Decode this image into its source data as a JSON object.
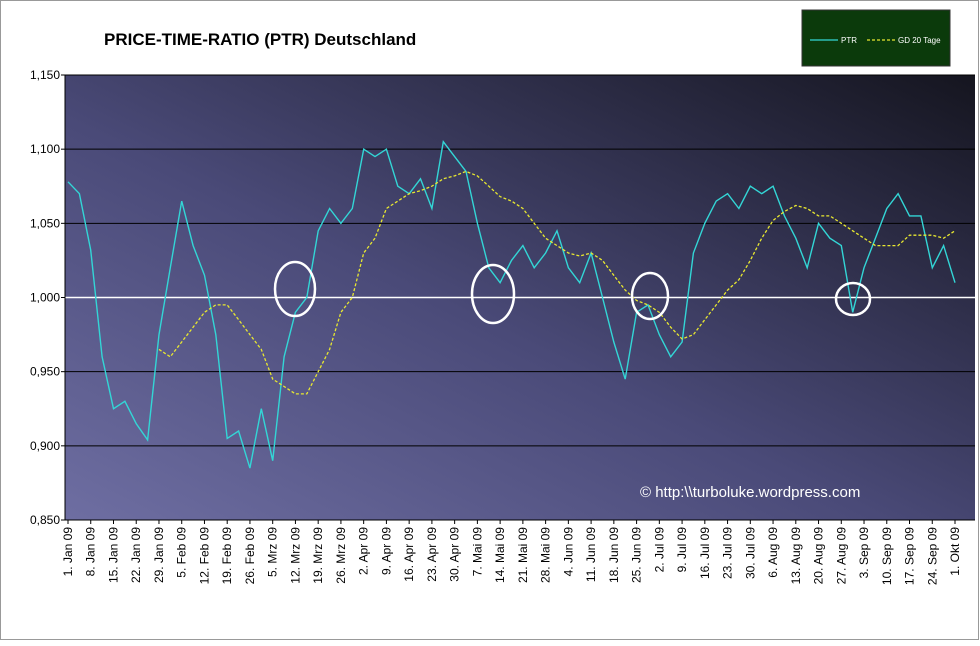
{
  "chart_data": {
    "type": "line",
    "title": "PRICE-TIME-RATIO (PTR) Deutschland",
    "annotation": "© http:\\\\turboluke.wordpress.com",
    "categories": [
      "1. Jan 09",
      null,
      "8. Jan 09",
      null,
      "15. Jan 09",
      null,
      "22. Jan 09",
      null,
      "29. Jan 09",
      null,
      "5. Feb 09",
      null,
      "12. Feb 09",
      null,
      "19. Feb 09",
      null,
      "26. Feb 09",
      null,
      "5. Mrz 09",
      null,
      "12. Mrz 09",
      null,
      "19. Mrz 09",
      null,
      "26. Mrz 09",
      null,
      "2. Apr 09",
      null,
      "9. Apr 09",
      null,
      "16. Apr 09",
      null,
      "23. Apr 09",
      null,
      "30. Apr 09",
      null,
      "7. Mai 09",
      null,
      "14. Mai 09",
      null,
      "21. Mai 09",
      null,
      "28. Mai 09",
      null,
      "4. Jun 09",
      null,
      "11. Jun 09",
      null,
      "18. Jun 09",
      null,
      "25. Jun 09",
      null,
      "2. Jul 09",
      null,
      "9. Jul 09",
      null,
      "16. Jul 09",
      null,
      "23. Jul 09",
      null,
      "30. Jul 09",
      null,
      "6. Aug 09",
      null,
      "13. Aug 09",
      null,
      "20. Aug 09",
      null,
      "27. Aug 09",
      null,
      "3. Sep 09",
      null,
      "10. Sep 09",
      null,
      "17. Sep 09",
      null,
      "24. Sep 09",
      null,
      "1. Okt 09"
    ],
    "series": [
      {
        "name": "PTR",
        "color": "#33d6d6",
        "dash": false,
        "values": [
          1.078,
          1.07,
          1.032,
          0.96,
          0.925,
          0.93,
          0.915,
          0.904,
          0.975,
          1.02,
          1.065,
          1.035,
          1.015,
          0.975,
          0.905,
          0.91,
          0.885,
          0.925,
          0.89,
          0.96,
          0.99,
          1.0,
          1.045,
          1.06,
          1.05,
          1.06,
          1.1,
          1.095,
          1.1,
          1.075,
          1.07,
          1.08,
          1.06,
          1.105,
          1.095,
          1.085,
          1.05,
          1.02,
          1.01,
          1.025,
          1.035,
          1.02,
          1.03,
          1.045,
          1.02,
          1.01,
          1.03,
          1.0,
          0.97,
          0.945,
          0.99,
          0.995,
          0.975,
          0.96,
          0.97,
          1.03,
          1.05,
          1.065,
          1.07,
          1.06,
          1.075,
          1.07,
          1.075,
          1.055,
          1.04,
          1.02,
          1.05,
          1.04,
          1.035,
          0.99,
          1.02,
          1.04,
          1.06,
          1.07,
          1.055,
          1.055,
          1.02,
          1.035,
          1.01
        ]
      },
      {
        "name": "GD 20 Tage",
        "color": "#e8e830",
        "dash": true,
        "values": [
          null,
          null,
          null,
          null,
          null,
          null,
          null,
          null,
          0.965,
          0.96,
          0.97,
          0.98,
          0.99,
          0.995,
          0.995,
          0.985,
          0.975,
          0.965,
          0.945,
          0.94,
          0.935,
          0.935,
          0.95,
          0.965,
          0.99,
          1.0,
          1.03,
          1.04,
          1.06,
          1.065,
          1.07,
          1.072,
          1.075,
          1.08,
          1.082,
          1.085,
          1.082,
          1.075,
          1.068,
          1.065,
          1.06,
          1.05,
          1.04,
          1.035,
          1.03,
          1.028,
          1.03,
          1.025,
          1.015,
          1.005,
          0.998,
          0.995,
          0.99,
          0.98,
          0.972,
          0.975,
          0.985,
          0.995,
          1.005,
          1.012,
          1.025,
          1.04,
          1.052,
          1.058,
          1.062,
          1.06,
          1.055,
          1.055,
          1.05,
          1.045,
          1.04,
          1.035,
          1.035,
          1.035,
          1.042,
          1.042,
          1.042,
          1.04,
          1.045
        ]
      }
    ],
    "ylim": [
      0.85,
      1.15
    ],
    "yticks": [
      {
        "value": 0.85,
        "label": "0,850"
      },
      {
        "value": 0.9,
        "label": "0,900"
      },
      {
        "value": 0.95,
        "label": "0,950"
      },
      {
        "value": 1.0,
        "label": "1,000"
      },
      {
        "value": 1.05,
        "label": "1,050"
      },
      {
        "value": 1.1,
        "label": "1,100"
      },
      {
        "value": 1.15,
        "label": "1,150"
      }
    ],
    "reference_line": 1.0,
    "grid": true,
    "legend": "top-right"
  }
}
